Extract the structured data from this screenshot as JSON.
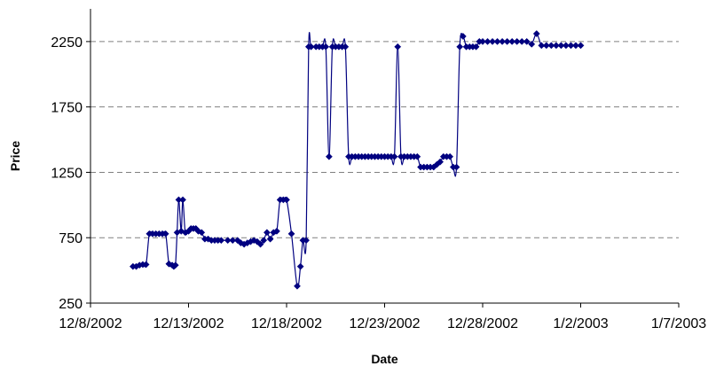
{
  "chart_data": {
    "type": "line",
    "title": "",
    "xlabel": "Date",
    "ylabel": "Price",
    "x_axis": {
      "type": "date",
      "min": "2002-12-08",
      "max": "2003-01-07",
      "ticks": [
        "2002-12-08",
        "2002-12-13",
        "2002-12-18",
        "2002-12-23",
        "2002-12-28",
        "2003-01-02",
        "2003-01-07"
      ],
      "tick_labels": [
        "12/8/2002",
        "12/13/2002",
        "12/18/2002",
        "12/23/2002",
        "12/28/2002",
        "1/2/2003",
        "1/7/2003"
      ]
    },
    "y_axis": {
      "min": 250,
      "max": 2500,
      "ticks": [
        250,
        750,
        1250,
        1750,
        2250
      ],
      "tick_labels": [
        "250",
        "750",
        "1250",
        "1750",
        "2250"
      ]
    },
    "grid": "horizontal dashed",
    "legend": "none",
    "marker": "diamond",
    "series": [
      {
        "color": "#000080",
        "x": [
          "2002-12-10 04:00",
          "2002-12-10 08:00",
          "2002-12-10 12:00",
          "2002-12-10 16:00",
          "2002-12-10 20:00",
          "2002-12-11 00:00",
          "2002-12-11 04:00",
          "2002-12-11 08:00",
          "2002-12-11 12:00",
          "2002-12-11 16:00",
          "2002-12-11 20:00",
          "2002-12-12 00:00",
          "2002-12-12 04:00",
          "2002-12-12 06:00",
          "2002-12-12 08:00",
          "2002-12-12 10:00",
          "2002-12-12 12:00",
          "2002-12-12 15:00",
          "2002-12-12 17:00",
          "2002-12-12 20:00",
          "2002-12-13 00:00",
          "2002-12-13 03:00",
          "2002-12-13 06:00",
          "2002-12-13 09:00",
          "2002-12-13 12:00",
          "2002-12-13 16:00",
          "2002-12-13 20:00",
          "2002-12-14 00:00",
          "2002-12-14 04:00",
          "2002-12-14 08:00",
          "2002-12-14 12:00",
          "2002-12-14 16:00",
          "2002-12-15 00:00",
          "2002-12-15 06:00",
          "2002-12-15 12:00",
          "2002-12-15 16:00",
          "2002-12-15 20:00",
          "2002-12-16 00:00",
          "2002-12-16 04:00",
          "2002-12-16 08:00",
          "2002-12-16 12:00",
          "2002-12-16 16:00",
          "2002-12-16 20:00",
          "2002-12-17 00:00",
          "2002-12-17 04:00",
          "2002-12-17 08:00",
          "2002-12-17 12:00",
          "2002-12-17 16:00",
          "2002-12-17 20:00",
          "2002-12-18 00:00",
          "2002-12-18 06:00",
          "2002-12-18 13:00",
          "2002-12-18 17:00",
          "2002-12-18 20:00",
          "2002-12-19 00:00",
          "2002-12-19 03:00",
          "2002-12-19 06:00",
          "2002-12-19 12:00",
          "2002-12-19 16:00",
          "2002-12-19 20:00",
          "2002-12-20 00:00",
          "2002-12-20 04:00",
          "2002-12-20 08:00",
          "2002-12-20 12:00",
          "2002-12-20 16:00",
          "2002-12-20 20:00",
          "2002-12-21 00:00",
          "2002-12-21 04:00",
          "2002-12-21 08:00",
          "2002-12-21 12:00",
          "2002-12-21 16:00",
          "2002-12-21 20:00",
          "2002-12-22 00:00",
          "2002-12-22 04:00",
          "2002-12-22 08:00",
          "2002-12-22 12:00",
          "2002-12-22 16:00",
          "2002-12-22 20:00",
          "2002-12-23 00:00",
          "2002-12-23 04:00",
          "2002-12-23 08:00",
          "2002-12-23 12:00",
          "2002-12-23 16:00",
          "2002-12-23 20:00",
          "2002-12-24 00:00",
          "2002-12-24 04:00",
          "2002-12-24 08:00",
          "2002-12-24 12:00",
          "2002-12-24 16:00",
          "2002-12-24 20:00",
          "2002-12-25 00:00",
          "2002-12-25 04:00",
          "2002-12-25 08:00",
          "2002-12-25 12:00",
          "2002-12-25 16:00",
          "2002-12-25 20:00",
          "2002-12-26 00:00",
          "2002-12-26 04:00",
          "2002-12-26 08:00",
          "2002-12-26 12:00",
          "2002-12-26 16:00",
          "2002-12-26 20:00",
          "2002-12-27 00:00",
          "2002-12-27 04:00",
          "2002-12-27 08:00",
          "2002-12-27 12:00",
          "2002-12-27 16:00",
          "2002-12-27 20:00",
          "2002-12-28 00:00",
          "2002-12-28 06:00",
          "2002-12-28 12:00",
          "2002-12-28 18:00",
          "2002-12-29 00:00",
          "2002-12-29 06:00",
          "2002-12-29 12:00",
          "2002-12-29 18:00",
          "2002-12-30 00:00",
          "2002-12-30 06:00",
          "2002-12-30 12:00",
          "2002-12-30 18:00",
          "2002-12-31 00:00",
          "2002-12-31 06:00",
          "2002-12-31 12:00",
          "2002-12-31 18:00",
          "2003-01-01 00:00",
          "2003-01-01 06:00",
          "2003-01-01 12:00",
          "2003-01-01 18:00",
          "2003-01-02 00:00"
        ],
        "y": [
          530,
          530,
          540,
          545,
          545,
          780,
          780,
          780,
          780,
          780,
          780,
          550,
          540,
          530,
          540,
          790,
          1040,
          800,
          1040,
          790,
          800,
          820,
          820,
          820,
          800,
          790,
          740,
          740,
          730,
          730,
          730,
          730,
          730,
          730,
          730,
          710,
          700,
          710,
          720,
          730,
          720,
          700,
          730,
          790,
          740,
          790,
          800,
          1040,
          1040,
          1040,
          780,
          380,
          530,
          730,
          730,
          2210,
          2210,
          2210,
          2210,
          2210,
          2210,
          1370,
          2210,
          2210,
          2210,
          2210,
          2210,
          1370,
          1370,
          1370,
          1370,
          1370,
          1370,
          1370,
          1370,
          1370,
          1370,
          1370,
          1370,
          1370,
          1370,
          1370,
          2210,
          1370,
          1370,
          1370,
          1370,
          1370,
          1370,
          1290,
          1290,
          1290,
          1290,
          1290,
          1310,
          1330,
          1370,
          1370,
          1370,
          1290,
          1290,
          2210,
          2290,
          2210,
          2210,
          2210,
          2210,
          2250,
          2250,
          2250,
          2250,
          2250,
          2250,
          2250,
          2250,
          2250,
          2250,
          2250,
          2230,
          2310,
          2220,
          2220,
          2220,
          2220,
          2220,
          2220,
          2220,
          2220,
          2220
        ]
      }
    ]
  }
}
